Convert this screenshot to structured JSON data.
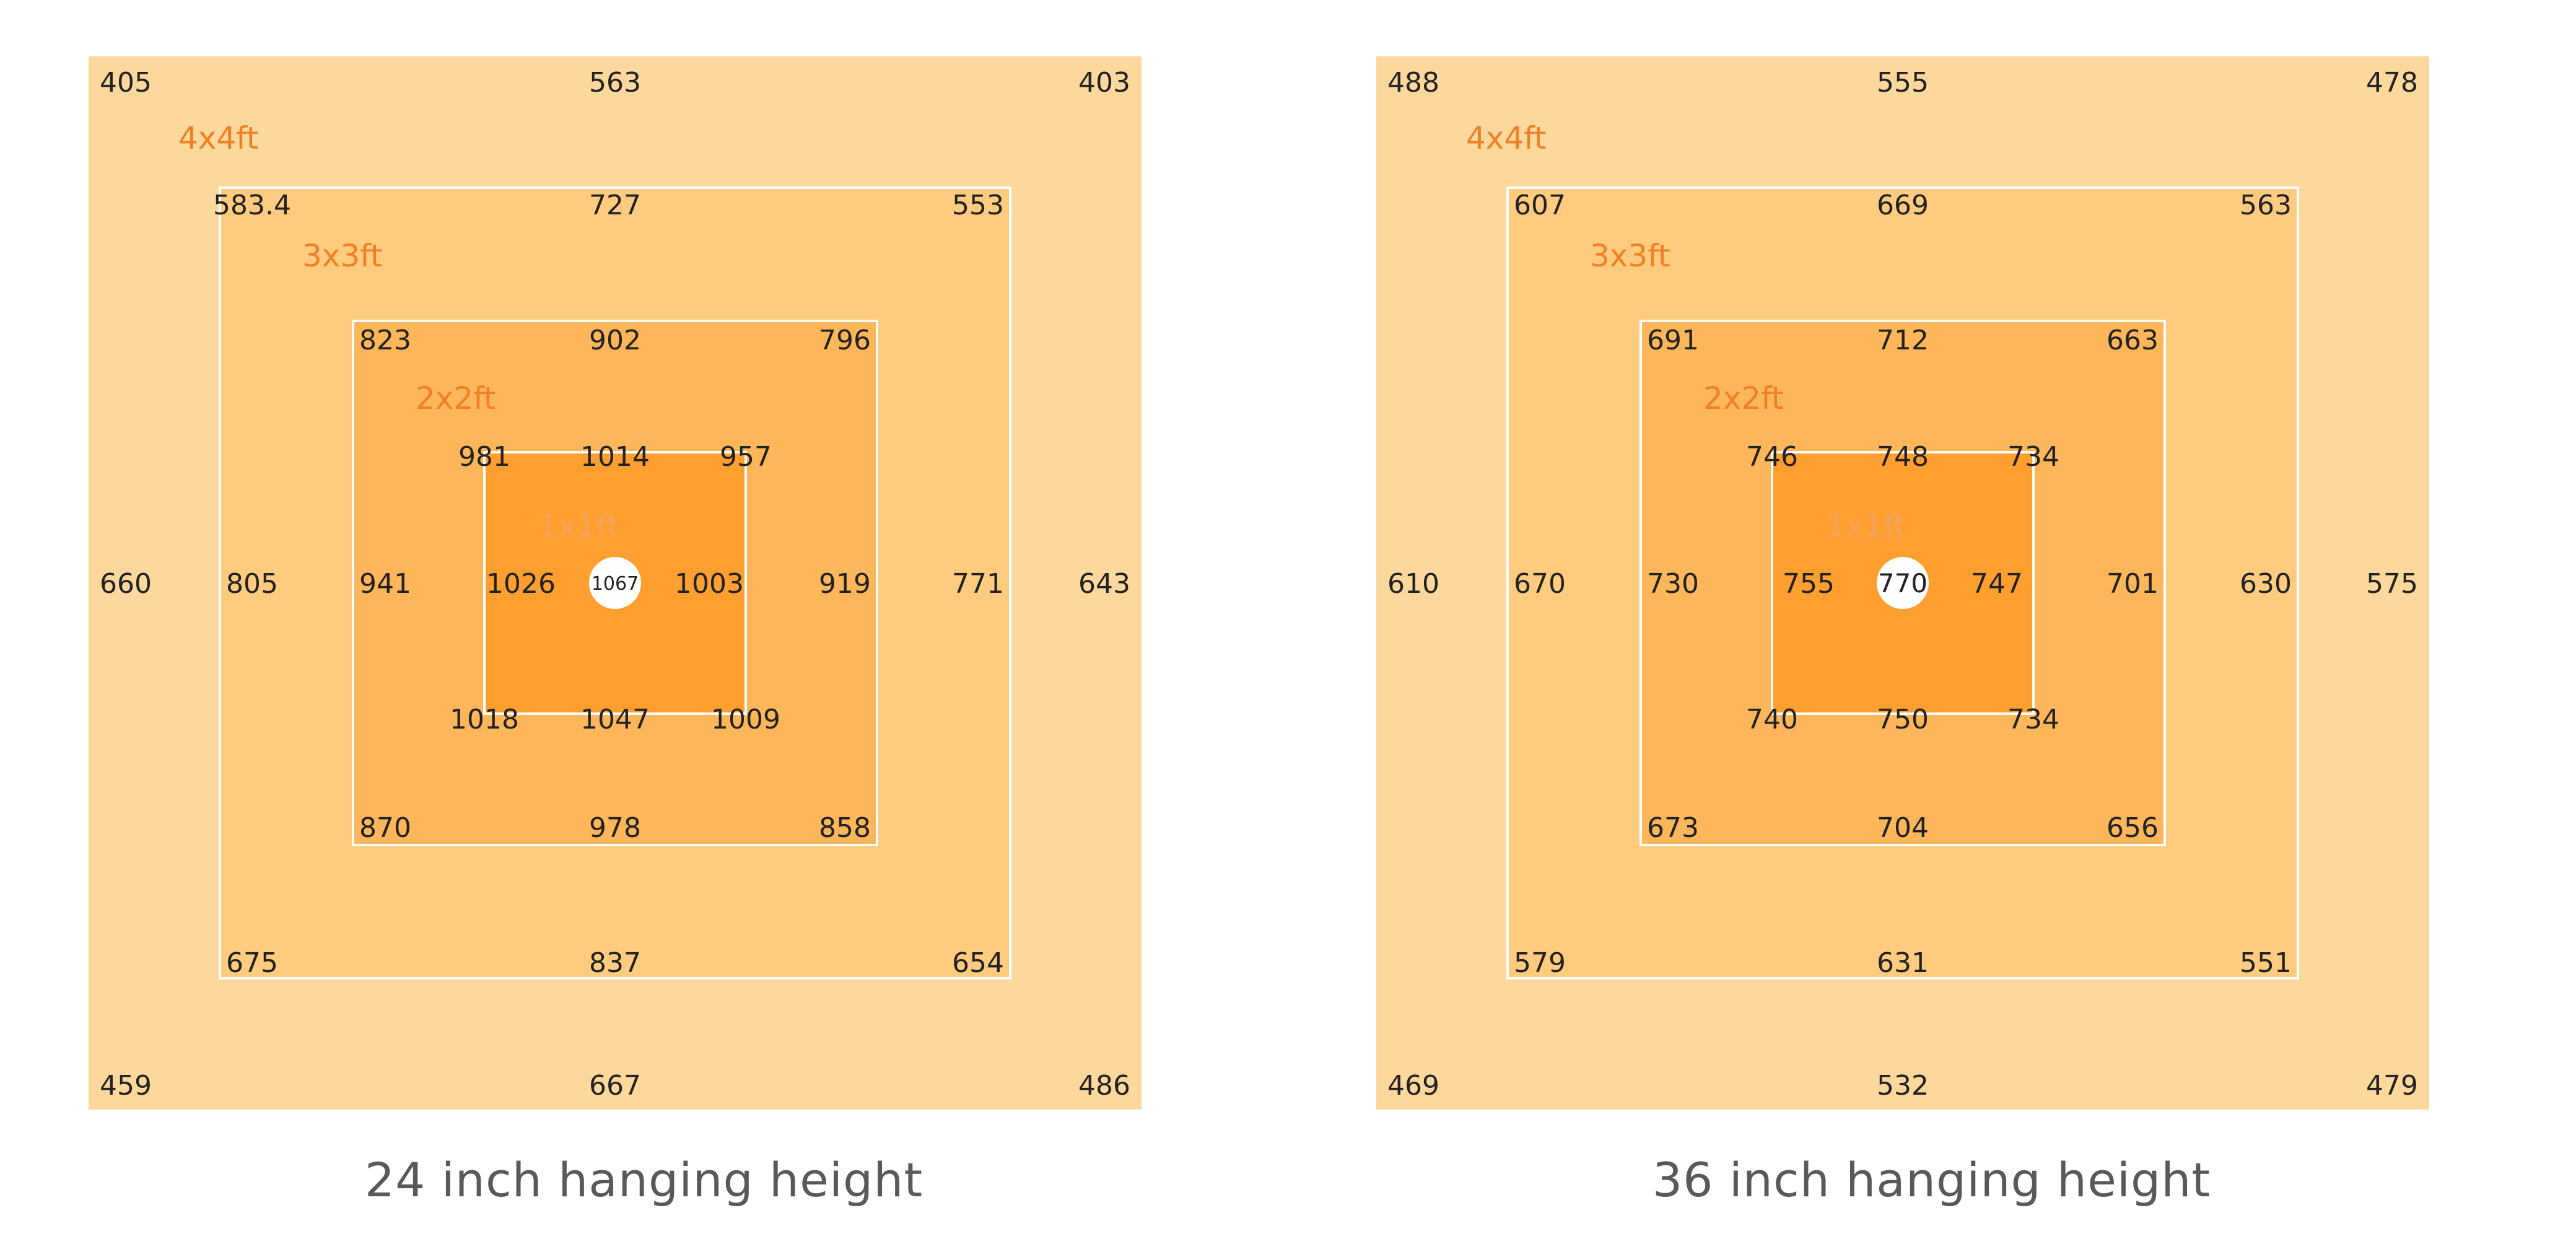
{
  "colors": {
    "zone_4x4": "#FDD89D",
    "zone_3x3": "#FECB7F",
    "zone_2x2": "#FEB65A",
    "zone_1x1": "#FF9F30",
    "zone_label": "#F08026",
    "zone_label_1x1": "#F3A25A",
    "value_text": "#222222",
    "border": "#ffffff",
    "center_dot": "#ffffff"
  },
  "panels": [
    {
      "caption": "24 inch hanging height",
      "zones": {
        "4x4": {
          "label": "4x4ft",
          "tl": "405",
          "tm": "563",
          "tr": "403",
          "ml": "660",
          "mr": "643",
          "bl": "459",
          "bm": "667",
          "br": "486"
        },
        "3x3": {
          "label": "3x3ft",
          "tl": "583.4",
          "tm": "727",
          "tr": "553",
          "ml": "805",
          "mr": "771",
          "bl": "675",
          "bm": "837",
          "br": "654"
        },
        "2x2": {
          "label": "2x2ft",
          "tl": "823",
          "tm": "902",
          "tr": "796",
          "ml": "941",
          "mr": "919",
          "bl": "870",
          "bm": "978",
          "br": "858"
        },
        "1x1": {
          "label": "1x1ft",
          "tl": "981",
          "tm": "1014",
          "tr": "957",
          "ml": "1026",
          "mr": "1003",
          "bl": "1018",
          "bm": "1047",
          "br": "1009"
        }
      },
      "center": "1067"
    },
    {
      "caption": "36 inch hanging height",
      "zones": {
        "4x4": {
          "label": "4x4ft",
          "tl": "488",
          "tm": "555",
          "tr": "478",
          "ml": "610",
          "mr": "575",
          "bl": "469",
          "bm": "532",
          "br": "479"
        },
        "3x3": {
          "label": "3x3ft",
          "tl": "607",
          "tm": "669",
          "tr": "563",
          "ml": "670",
          "mr": "630",
          "bl": "579",
          "bm": "631",
          "br": "551"
        },
        "2x2": {
          "label": "2x2ft",
          "tl": "691",
          "tm": "712",
          "tr": "663",
          "ml": "730",
          "mr": "701",
          "bl": "673",
          "bm": "704",
          "br": "656"
        },
        "1x1": {
          "label": "1x1ft",
          "tl": "746",
          "tm": "748",
          "tr": "734",
          "ml": "755",
          "mr": "747",
          "bl": "740",
          "bm": "750",
          "br": "734"
        }
      },
      "center": "770"
    }
  ]
}
